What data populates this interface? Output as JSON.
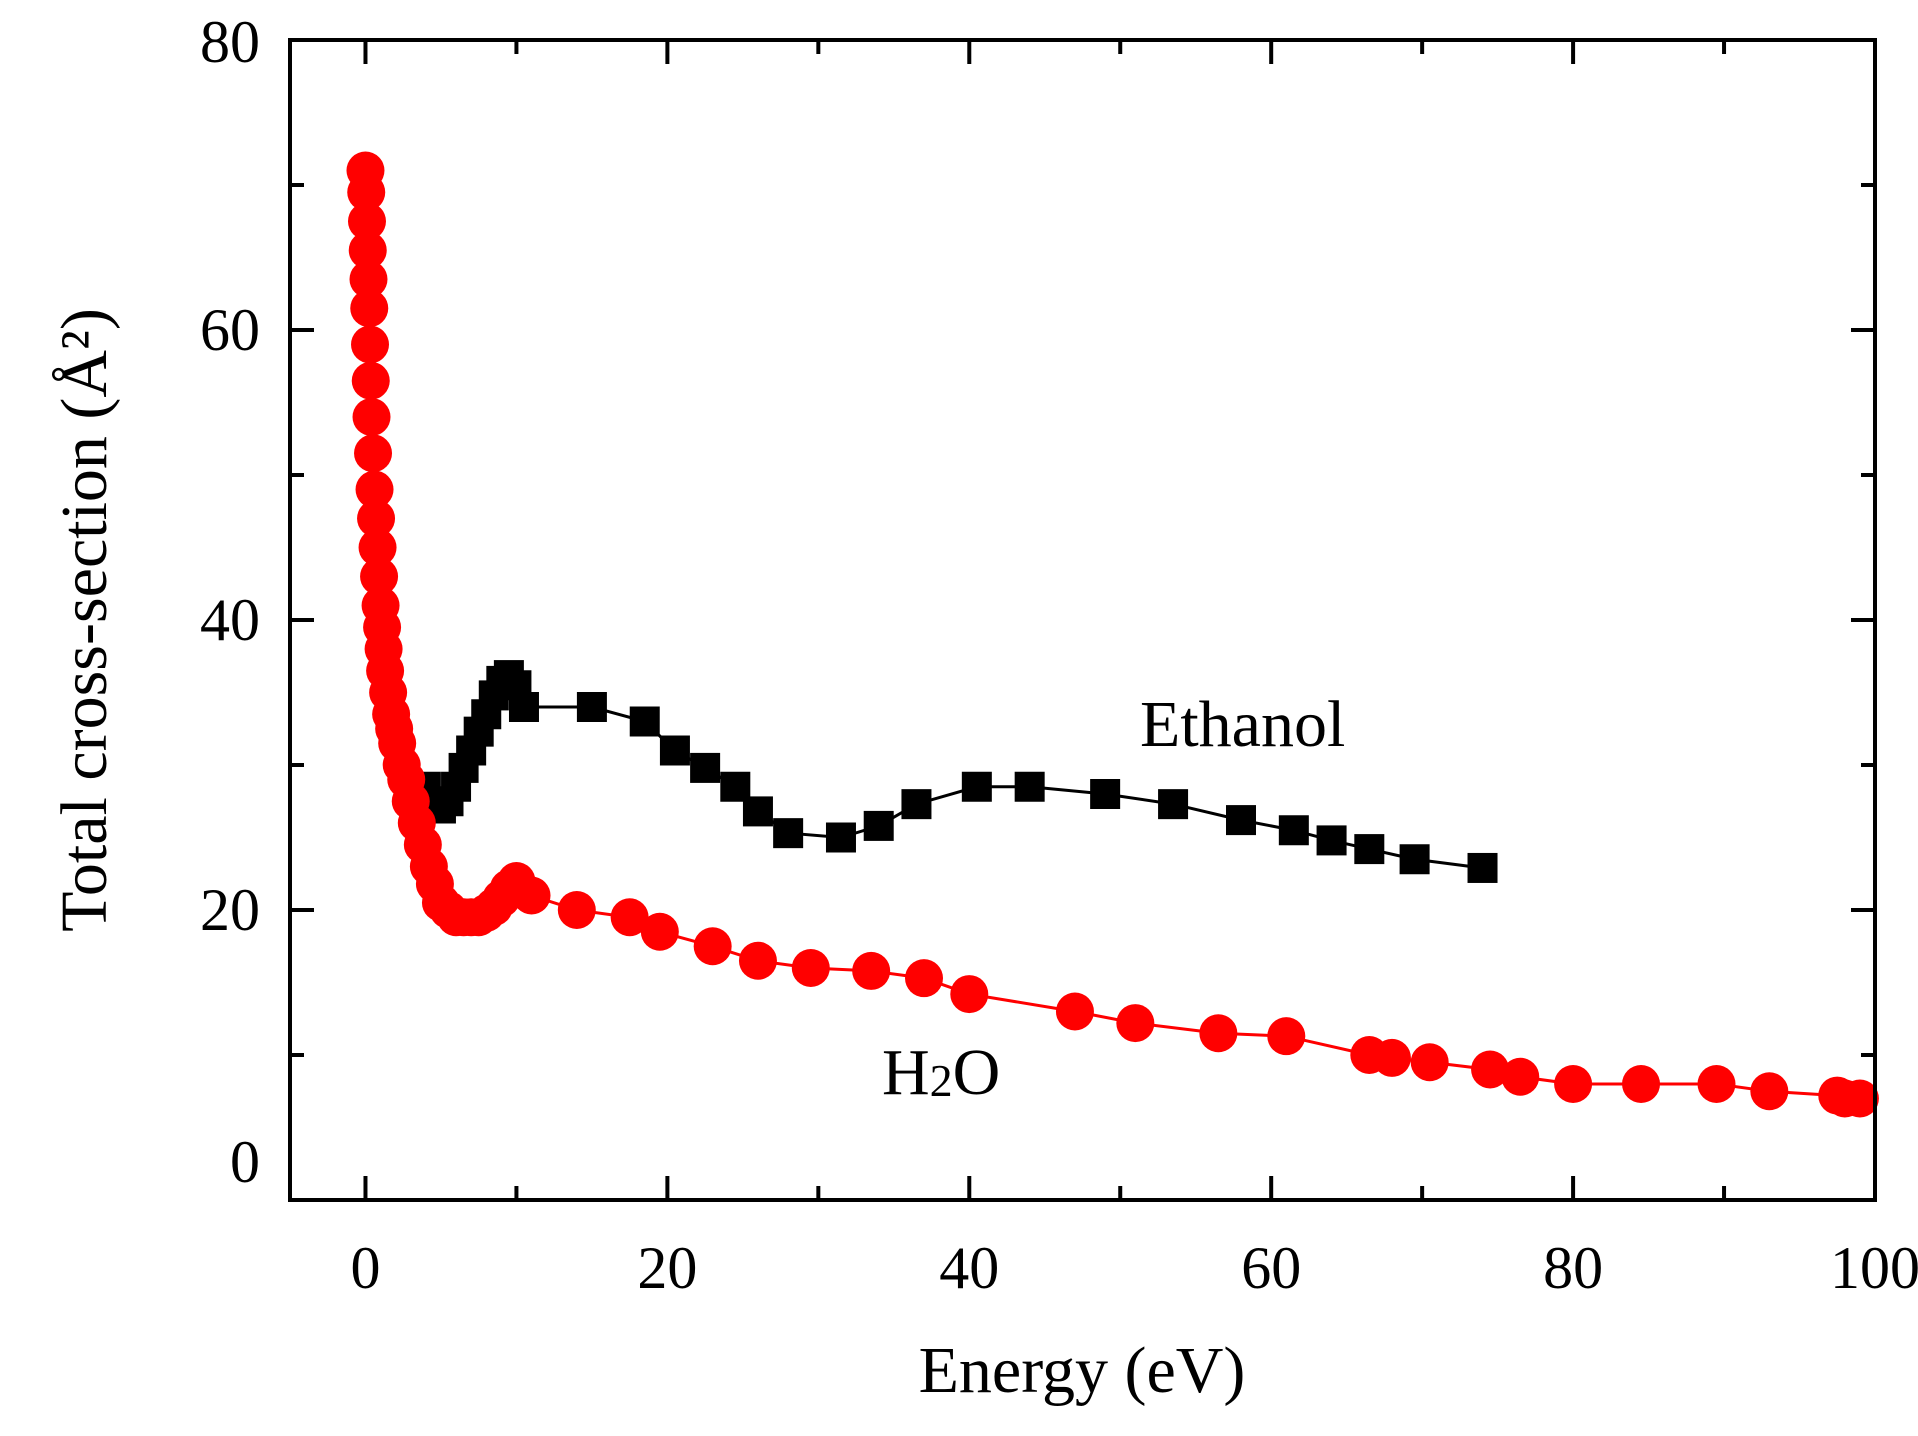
{
  "chart_data": {
    "type": "line",
    "xlabel": "Energy (eV)",
    "ylabel": "Total cross-section (Å²)",
    "xlim": [
      -5,
      100
    ],
    "ylim": [
      0,
      80
    ],
    "x_ticks": [
      "0",
      "20",
      "40",
      "60",
      "80",
      "100"
    ],
    "y_ticks": [
      "0",
      "20",
      "40",
      "60",
      "80"
    ],
    "colors": {
      "h2o": "#ff0000",
      "ethanol": "#000000",
      "axis": "#000000"
    },
    "series": [
      {
        "name": "Ethanol",
        "label": "Ethanol",
        "marker": "square",
        "x": [
          4.0,
          5.0,
          5.5,
          6.0,
          6.5,
          7.0,
          7.5,
          8.0,
          8.5,
          9.0,
          9.5,
          10.0,
          10.5,
          15.0,
          18.5,
          20.5,
          22.5,
          24.5,
          26.0,
          28.0,
          31.5,
          34.0,
          36.5,
          40.5,
          44.0,
          49.0,
          53.5,
          58.0,
          61.5,
          64.0,
          66.5,
          69.5,
          74.0
        ],
        "values": [
          28.5,
          27.0,
          27.5,
          28.5,
          29.8,
          31.0,
          32.3,
          33.5,
          34.8,
          35.8,
          36.2,
          35.5,
          34.0,
          34.0,
          33.0,
          31.0,
          29.8,
          28.5,
          26.8,
          25.3,
          25.0,
          25.8,
          27.3,
          28.5,
          28.5,
          28.0,
          27.3,
          26.2,
          25.5,
          24.8,
          24.2,
          23.5,
          22.9
        ]
      },
      {
        "name": "H2O",
        "label": "H2O",
        "label_main": "H",
        "label_sub": "2",
        "label_end": "O",
        "marker": "circle",
        "x": [
          0.0,
          0.05,
          0.1,
          0.15,
          0.2,
          0.25,
          0.3,
          0.35,
          0.4,
          0.5,
          0.6,
          0.7,
          0.8,
          0.9,
          1.0,
          1.1,
          1.2,
          1.3,
          1.5,
          1.7,
          1.9,
          2.1,
          2.4,
          2.7,
          3.0,
          3.4,
          3.8,
          4.2,
          4.6,
          5.0,
          5.5,
          6.0,
          6.5,
          7.0,
          7.5,
          8.0,
          8.5,
          9.0,
          9.5,
          10.0,
          11.0,
          14.0,
          17.5,
          19.5,
          23.0,
          26.0,
          29.5,
          33.5,
          37.0,
          40.0,
          47.0,
          51.0,
          56.5,
          61.0,
          66.5,
          68.0,
          70.5,
          74.5,
          76.5,
          80.0,
          84.5,
          89.5,
          93.0,
          97.5,
          98.0,
          99.0
        ],
        "values": [
          71.0,
          69.5,
          67.5,
          65.5,
          63.5,
          61.5,
          59.0,
          56.5,
          54.0,
          51.5,
          49.0,
          47.0,
          45.0,
          43.0,
          41.0,
          39.5,
          38.0,
          36.5,
          35.0,
          33.5,
          32.5,
          31.5,
          30.0,
          29.0,
          27.5,
          26.0,
          24.5,
          23.0,
          21.8,
          20.5,
          20.0,
          19.5,
          19.5,
          19.5,
          19.5,
          19.8,
          20.2,
          20.8,
          21.5,
          22.0,
          21.0,
          20.0,
          19.5,
          18.5,
          17.5,
          16.5,
          16.0,
          15.8,
          15.3,
          14.2,
          13.0,
          12.2,
          11.5,
          11.3,
          10.0,
          9.8,
          9.5,
          9.0,
          8.5,
          8.0,
          8.0,
          8.0,
          7.5,
          7.2,
          7.0,
          7.0
        ]
      }
    ],
    "annotations": [
      {
        "series": "Ethanol",
        "text": "Ethanol",
        "x": 60,
        "y": 32
      },
      {
        "series": "H2O",
        "text": "H2O",
        "x": 43,
        "y": 8.5
      }
    ]
  }
}
